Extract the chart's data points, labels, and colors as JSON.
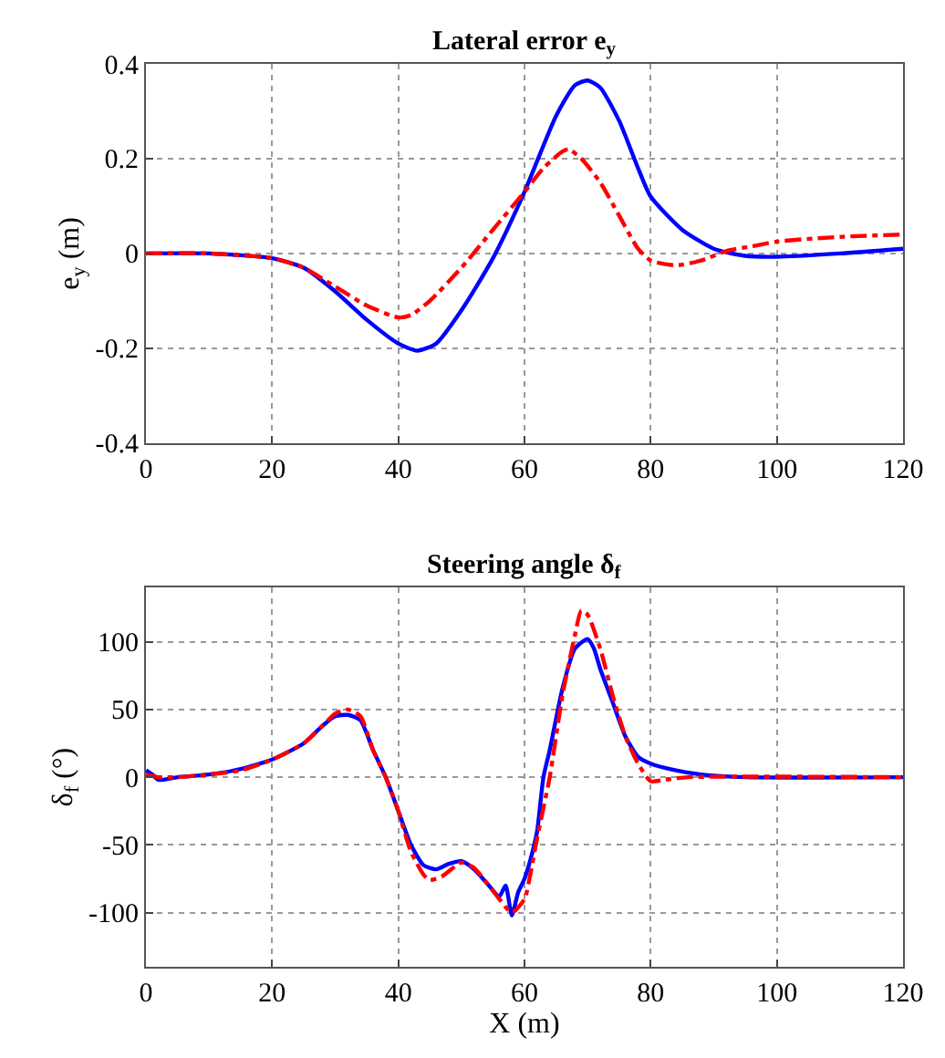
{
  "chart_data": [
    {
      "type": "line",
      "title": "Lateral error e$_{y}$",
      "ylabel": "e$_{y}$ (m)",
      "xlim": [
        0,
        120
      ],
      "xticks": [
        0,
        20,
        40,
        60,
        80,
        100,
        120
      ],
      "ylim": [
        -0.4,
        0.4
      ],
      "yticks": [
        -0.4,
        -0.2,
        0,
        0.2,
        0.4
      ],
      "grid": true,
      "series": [
        {
          "color": "#0000ff",
          "line_style": "solid",
          "x": [
            0,
            10,
            20,
            25,
            30,
            35,
            40,
            43,
            46,
            50,
            55,
            60,
            65,
            68,
            70,
            72,
            75,
            78,
            80,
            85,
            90,
            95,
            100,
            110,
            120
          ],
          "values": [
            0,
            0,
            -0.01,
            -0.03,
            -0.08,
            -0.14,
            -0.19,
            -0.205,
            -0.19,
            -0.12,
            -0.01,
            0.13,
            0.29,
            0.355,
            0.365,
            0.35,
            0.28,
            0.18,
            0.12,
            0.05,
            0.01,
            -0.005,
            -0.007,
            0,
            0.01
          ]
        },
        {
          "color": "#ff0000",
          "line_style": "dashed",
          "x": [
            0,
            10,
            20,
            25,
            30,
            35,
            40,
            42,
            45,
            50,
            55,
            60,
            63,
            66,
            67,
            69,
            72,
            75,
            78,
            80,
            84,
            88,
            92,
            96,
            100,
            110,
            120
          ],
          "values": [
            0,
            0,
            -0.01,
            -0.03,
            -0.07,
            -0.11,
            -0.135,
            -0.13,
            -0.1,
            -0.03,
            0.05,
            0.13,
            0.18,
            0.215,
            0.22,
            0.2,
            0.15,
            0.08,
            0.01,
            -0.015,
            -0.025,
            -0.015,
            0.005,
            0.015,
            0.025,
            0.035,
            0.04
          ]
        }
      ]
    },
    {
      "type": "line",
      "title": "Steering angle δ$_{f}$",
      "xlabel": "X (m)",
      "ylabel": "δ$_{f}$ (°)",
      "xlim": [
        0,
        120
      ],
      "xticks": [
        0,
        20,
        40,
        60,
        80,
        100,
        120
      ],
      "ylim": [
        -140,
        140
      ],
      "yticks": [
        -100,
        -50,
        0,
        50,
        100
      ],
      "grid": true,
      "series": [
        {
          "color": "#0000ff",
          "line_style": "solid",
          "x": [
            0,
            1,
            2,
            5,
            10,
            15,
            20,
            25,
            28,
            30,
            32,
            34,
            36,
            38,
            40,
            42,
            44,
            46,
            48,
            50,
            52,
            54,
            56,
            57,
            58,
            59,
            60,
            61,
            62,
            63,
            64,
            66,
            68,
            70,
            71,
            72,
            74,
            76,
            78,
            80,
            84,
            88,
            95,
            120
          ],
          "values": [
            5,
            2,
            -2,
            0,
            2,
            6,
            13,
            25,
            38,
            45,
            46,
            42,
            20,
            0,
            -25,
            -50,
            -65,
            -68,
            -64,
            -62,
            -68,
            -78,
            -88,
            -80,
            -102,
            -85,
            -75,
            -60,
            -40,
            0,
            20,
            65,
            95,
            102,
            95,
            80,
            55,
            30,
            15,
            10,
            5,
            2,
            0,
            0
          ]
        },
        {
          "color": "#ff0000",
          "line_style": "dashed",
          "x": [
            0,
            2,
            5,
            10,
            15,
            20,
            25,
            28,
            30,
            32,
            34,
            36,
            38,
            40,
            42,
            44,
            45,
            47,
            50,
            52,
            54,
            56,
            58,
            60,
            61,
            62,
            64,
            66,
            68,
            69,
            70,
            72,
            74,
            76,
            78,
            80,
            82,
            86,
            120
          ],
          "values": [
            2,
            0,
            0,
            2,
            5,
            13,
            25,
            38,
            47,
            50,
            45,
            20,
            0,
            -25,
            -55,
            -72,
            -76,
            -73,
            -63,
            -67,
            -78,
            -90,
            -100,
            -90,
            -70,
            -45,
            0,
            60,
            105,
            123,
            120,
            95,
            60,
            30,
            10,
            -3,
            -2,
            0,
            0
          ]
        }
      ]
    }
  ]
}
